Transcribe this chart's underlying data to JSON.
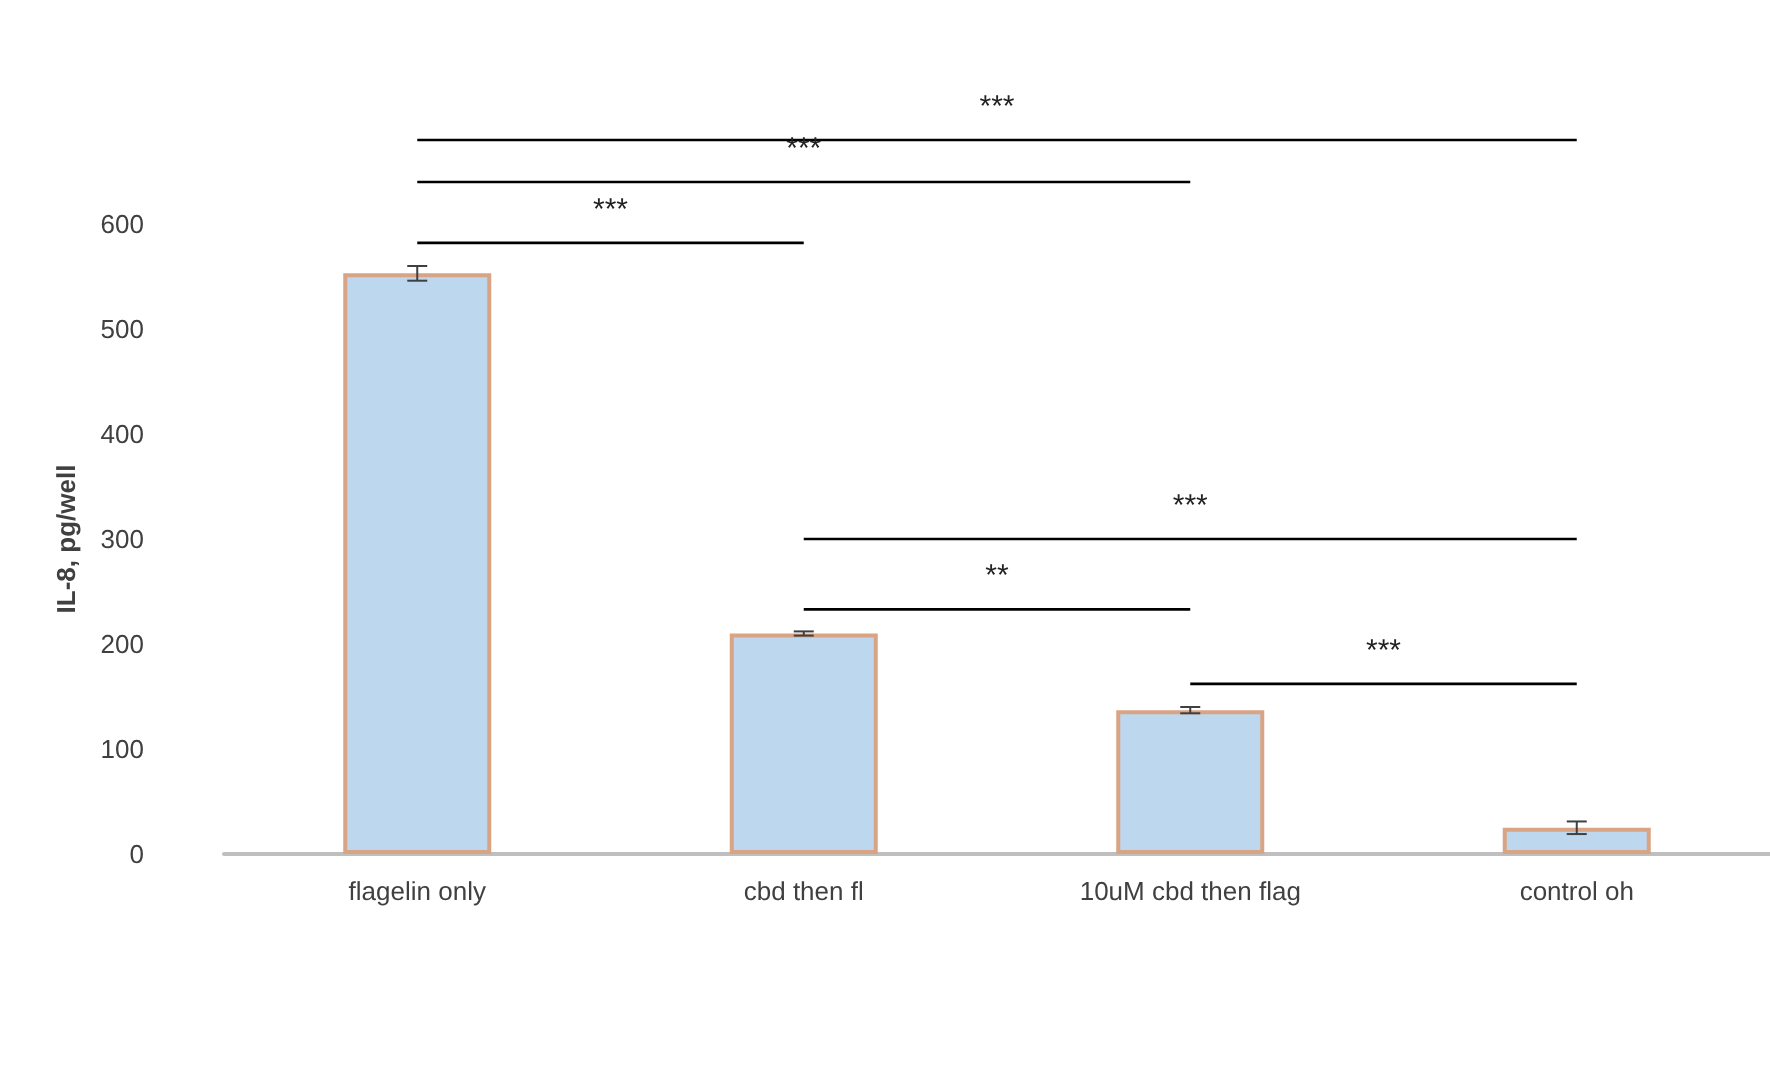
{
  "chart_data": {
    "type": "bar",
    "ylabel": "IL-8, pg/well",
    "categories": [
      "flagelin only",
      "cbd then fl",
      "10uM cbd then flag",
      "control oh"
    ],
    "values": [
      553,
      210,
      137,
      25
    ],
    "errors": [
      7,
      2,
      3,
      6
    ],
    "color": "#bdd7ee",
    "ylim": [
      0,
      600
    ],
    "yticks": [
      0,
      100,
      200,
      300,
      400,
      500,
      600
    ],
    "annotations": [
      "***",
      "***",
      "***",
      "***",
      "**",
      "***"
    ]
  }
}
